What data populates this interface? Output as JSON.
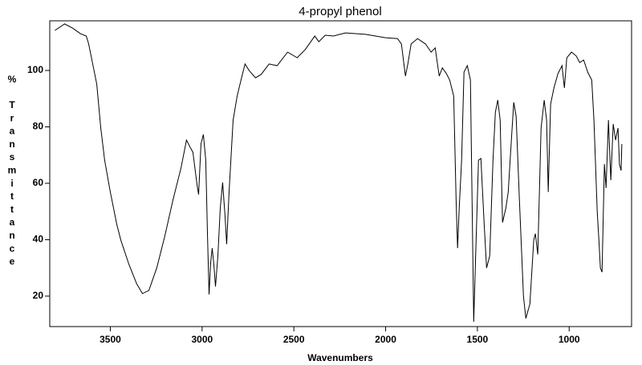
{
  "chart_data": {
    "type": "line",
    "title": "4-propyl phenol",
    "xlabel": "Wavenumbers",
    "ylabel_unit": "%",
    "ylabel": "Transmittance",
    "color": "#000000",
    "xlim": [
      3830,
      660
    ],
    "ylim": [
      9.2,
      117.6
    ],
    "xticks": [
      3500,
      3000,
      2500,
      2000,
      1500,
      1000
    ],
    "yticks": [
      20,
      40,
      60,
      80,
      100
    ],
    "x": [
      3802,
      3749,
      3705,
      3662,
      3631,
      3618,
      3596,
      3574,
      3552,
      3531,
      3500,
      3465,
      3443,
      3399,
      3356,
      3325,
      3290,
      3247,
      3203,
      3159,
      3115,
      3085,
      3063,
      3050,
      3028,
      3019,
      3006,
      2993,
      2980,
      2971,
      2962,
      2954,
      2945,
      2936,
      2927,
      2914,
      2901,
      2888,
      2875,
      2866,
      2853,
      2831,
      2809,
      2788,
      2766,
      2744,
      2709,
      2678,
      2635,
      2591,
      2534,
      2482,
      2438,
      2386,
      2364,
      2329,
      2285,
      2219,
      2110,
      2001,
      1935,
      1914,
      1892,
      1879,
      1861,
      1826,
      1783,
      1752,
      1730,
      1708,
      1691,
      1669,
      1651,
      1629,
      1616,
      1608,
      1599,
      1586,
      1573,
      1555,
      1538,
      1529,
      1520,
      1507,
      1494,
      1481,
      1463,
      1450,
      1433,
      1415,
      1402,
      1389,
      1376,
      1363,
      1345,
      1332,
      1319,
      1302,
      1289,
      1271,
      1249,
      1236,
      1214,
      1193,
      1184,
      1171,
      1153,
      1136,
      1123,
      1114,
      1101,
      1083,
      1061,
      1039,
      1026,
      1013,
      987,
      961,
      943,
      921,
      899,
      877,
      865,
      847,
      838,
      830,
      821,
      808,
      799,
      786,
      773,
      760,
      747,
      734,
      726,
      717,
      713
    ],
    "values": [
      114.2,
      116.5,
      115,
      113,
      112.2,
      109.4,
      102.3,
      95.2,
      79.6,
      68.2,
      56.9,
      45.5,
      39.9,
      31.3,
      24.3,
      20.9,
      22,
      30,
      41.3,
      54,
      65.4,
      75.3,
      72.5,
      71,
      59.7,
      56,
      74,
      77.3,
      68.2,
      42.7,
      20.6,
      31.3,
      37,
      31.3,
      23.4,
      34.2,
      51.2,
      60.3,
      48.4,
      38.4,
      56.9,
      82.4,
      90.9,
      96.6,
      102.3,
      100,
      97.4,
      98.6,
      102.3,
      101.7,
      106.5,
      104.5,
      107.4,
      112.2,
      110.2,
      112.5,
      112.2,
      113.3,
      112.8,
      111.6,
      111.3,
      109.4,
      98,
      102.3,
      109.4,
      111.3,
      109.4,
      106.5,
      108,
      98,
      100.9,
      98.9,
      96.6,
      90.9,
      54,
      37,
      51.2,
      68.2,
      99.4,
      101.7,
      96.6,
      54,
      10.9,
      39.9,
      68.2,
      68.8,
      45.5,
      30,
      34.2,
      68.2,
      85.2,
      89.5,
      82.4,
      46.1,
      51.2,
      56.9,
      71,
      88.7,
      83.8,
      54,
      20,
      12.1,
      17.2,
      39.9,
      42.1,
      34.8,
      79.6,
      89.5,
      82.4,
      56.9,
      88.1,
      93.8,
      98.9,
      101.7,
      93.8,
      104.5,
      106.5,
      105.1,
      102.8,
      103.7,
      99.4,
      96.6,
      82.4,
      49.8,
      39.9,
      30,
      28.5,
      66.8,
      58.3,
      82.4,
      61.1,
      81,
      75.3,
      79.6,
      66.8,
      64.5,
      73.9
    ]
  }
}
